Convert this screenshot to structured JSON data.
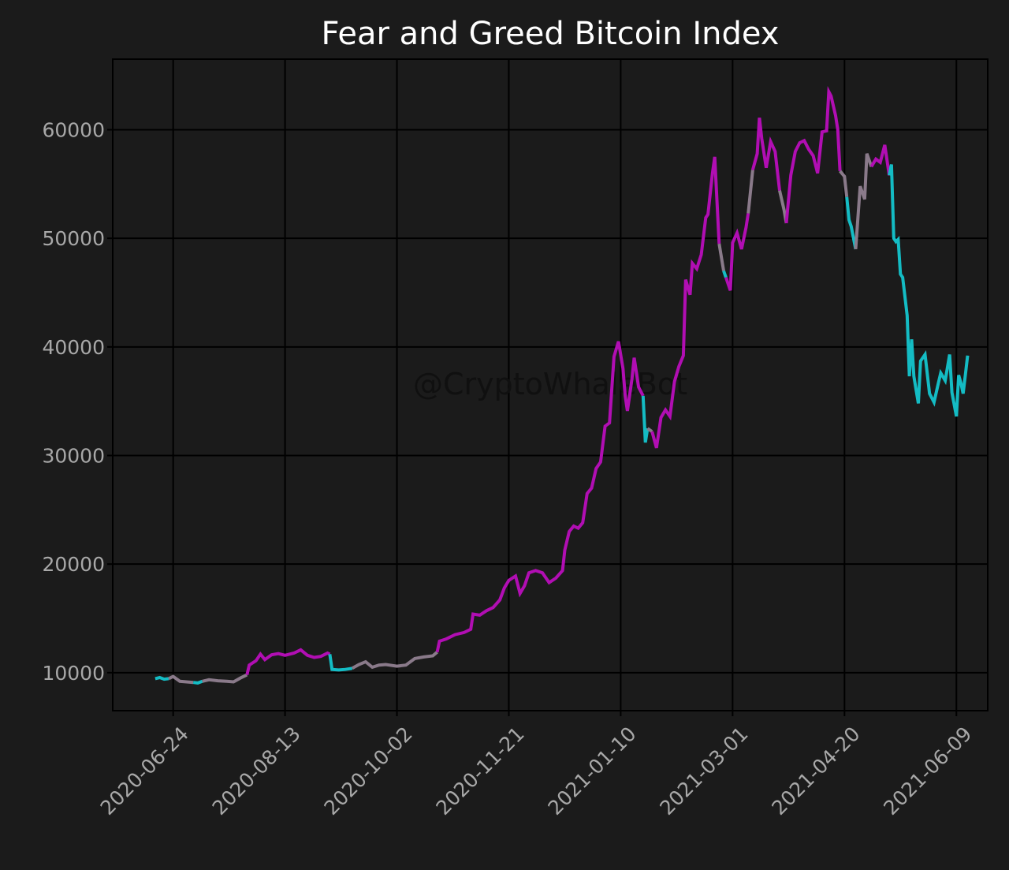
{
  "chart_data": {
    "type": "line",
    "title": "Fear and Greed Bitcoin Index",
    "watermark": "@CryptoWhaleBot",
    "xlabel": "",
    "ylabel": "",
    "x_tick_labels": [
      "2020-06-24",
      "2020-08-13",
      "2020-10-02",
      "2020-11-21",
      "2021-01-10",
      "2021-03-01",
      "2021-04-20",
      "2021-06-09"
    ],
    "y_ticks": [
      10000,
      20000,
      30000,
      40000,
      50000,
      60000
    ],
    "xlim": [
      "2020-05-28",
      "2021-06-23"
    ],
    "ylim": [
      6500,
      66500
    ],
    "grid": true,
    "legend": "none",
    "colors": {
      "background": "#1b1b1b",
      "greed": "#b10eb3",
      "neutral": "#8a7a8a",
      "fear": "#14bcc4"
    },
    "segments": [
      {
        "color": "#14bcc4",
        "points": [
          [
            "2020-06-16",
            9450
          ],
          [
            "2020-06-18",
            9550
          ],
          [
            "2020-06-20",
            9400
          ],
          [
            "2020-06-22",
            9450
          ]
        ]
      },
      {
        "color": "#8a7a8a",
        "points": [
          [
            "2020-06-22",
            9450
          ],
          [
            "2020-06-24",
            9650
          ],
          [
            "2020-06-27",
            9200
          ],
          [
            "2020-06-30",
            9150
          ],
          [
            "2020-07-03",
            9100
          ]
        ]
      },
      {
        "color": "#14bcc4",
        "points": [
          [
            "2020-07-03",
            9100
          ],
          [
            "2020-07-05",
            9050
          ],
          [
            "2020-07-07",
            9200
          ]
        ]
      },
      {
        "color": "#8a7a8a",
        "points": [
          [
            "2020-07-07",
            9200
          ],
          [
            "2020-07-10",
            9350
          ],
          [
            "2020-07-14",
            9250
          ],
          [
            "2020-07-18",
            9200
          ],
          [
            "2020-07-21",
            9150
          ],
          [
            "2020-07-24",
            9500
          ],
          [
            "2020-07-27",
            9800
          ]
        ]
      },
      {
        "color": "#b10eb3",
        "points": [
          [
            "2020-07-27",
            9800
          ],
          [
            "2020-07-28",
            10700
          ],
          [
            "2020-07-31",
            11100
          ],
          [
            "2020-08-02",
            11700
          ],
          [
            "2020-08-04",
            11200
          ],
          [
            "2020-08-07",
            11650
          ],
          [
            "2020-08-10",
            11750
          ],
          [
            "2020-08-13",
            11600
          ],
          [
            "2020-08-17",
            11800
          ],
          [
            "2020-08-20",
            12100
          ],
          [
            "2020-08-23",
            11600
          ],
          [
            "2020-08-26",
            11400
          ],
          [
            "2020-08-29",
            11500
          ],
          [
            "2020-09-01",
            11800
          ],
          [
            "2020-09-02",
            11700
          ]
        ]
      },
      {
        "color": "#14bcc4",
        "points": [
          [
            "2020-09-02",
            11700
          ],
          [
            "2020-09-03",
            10300
          ],
          [
            "2020-09-06",
            10250
          ],
          [
            "2020-09-09",
            10300
          ],
          [
            "2020-09-12",
            10400
          ]
        ]
      },
      {
        "color": "#8a7a8a",
        "points": [
          [
            "2020-09-12",
            10400
          ],
          [
            "2020-09-15",
            10750
          ],
          [
            "2020-09-18",
            11000
          ],
          [
            "2020-09-21",
            10500
          ],
          [
            "2020-09-24",
            10700
          ],
          [
            "2020-09-27",
            10750
          ],
          [
            "2020-10-02",
            10600
          ],
          [
            "2020-10-06",
            10700
          ],
          [
            "2020-10-10",
            11300
          ],
          [
            "2020-10-14",
            11450
          ],
          [
            "2020-10-18",
            11550
          ],
          [
            "2020-10-20",
            11900
          ]
        ]
      },
      {
        "color": "#b10eb3",
        "points": [
          [
            "2020-10-20",
            11900
          ],
          [
            "2020-10-21",
            12900
          ],
          [
            "2020-10-24",
            13100
          ],
          [
            "2020-10-28",
            13500
          ],
          [
            "2020-11-01",
            13700
          ],
          [
            "2020-11-04",
            14000
          ],
          [
            "2020-11-05",
            15400
          ],
          [
            "2020-11-08",
            15300
          ],
          [
            "2020-11-11",
            15700
          ],
          [
            "2020-11-14",
            16000
          ],
          [
            "2020-11-17",
            16700
          ],
          [
            "2020-11-19",
            17800
          ],
          [
            "2020-11-21",
            18500
          ],
          [
            "2020-11-24",
            18900
          ],
          [
            "2020-11-26",
            17300
          ],
          [
            "2020-11-28",
            18000
          ],
          [
            "2020-11-30",
            19200
          ],
          [
            "2020-12-03",
            19400
          ],
          [
            "2020-12-06",
            19200
          ],
          [
            "2020-12-09",
            18300
          ],
          [
            "2020-12-12",
            18700
          ],
          [
            "2020-12-15",
            19400
          ],
          [
            "2020-12-16",
            21300
          ],
          [
            "2020-12-18",
            23000
          ],
          [
            "2020-12-20",
            23500
          ],
          [
            "2020-12-22",
            23300
          ],
          [
            "2020-12-24",
            23800
          ],
          [
            "2020-12-26",
            26500
          ],
          [
            "2020-12-28",
            27000
          ],
          [
            "2020-12-30",
            28800
          ],
          [
            "2021-01-01",
            29400
          ],
          [
            "2021-01-03",
            32700
          ],
          [
            "2021-01-05",
            33000
          ],
          [
            "2021-01-07",
            39100
          ],
          [
            "2021-01-09",
            40500
          ],
          [
            "2021-01-11",
            38000
          ],
          [
            "2021-01-12",
            35500
          ],
          [
            "2021-01-13",
            34100
          ],
          [
            "2021-01-15",
            37000
          ],
          [
            "2021-01-16",
            39000
          ],
          [
            "2021-01-18",
            36300
          ],
          [
            "2021-01-20",
            35500
          ]
        ]
      },
      {
        "color": "#14bcc4",
        "points": [
          [
            "2021-01-20",
            35500
          ],
          [
            "2021-01-21",
            31200
          ],
          [
            "2021-01-22",
            32500
          ]
        ]
      },
      {
        "color": "#8a7a8a",
        "points": [
          [
            "2021-01-22",
            32500
          ],
          [
            "2021-01-24",
            32200
          ]
        ]
      },
      {
        "color": "#b10eb3",
        "points": [
          [
            "2021-01-24",
            32200
          ],
          [
            "2021-01-26",
            30700
          ],
          [
            "2021-01-28",
            33500
          ],
          [
            "2021-01-30",
            34200
          ],
          [
            "2021-02-01",
            33600
          ],
          [
            "2021-02-03",
            36800
          ],
          [
            "2021-02-05",
            38200
          ],
          [
            "2021-02-07",
            39200
          ],
          [
            "2021-02-08",
            46200
          ],
          [
            "2021-02-10",
            44800
          ],
          [
            "2021-02-11",
            47700
          ],
          [
            "2021-02-13",
            47200
          ],
          [
            "2021-02-15",
            48500
          ],
          [
            "2021-02-17",
            51900
          ],
          [
            "2021-02-18",
            52200
          ],
          [
            "2021-02-20",
            56000
          ],
          [
            "2021-02-21",
            57500
          ],
          [
            "2021-02-23",
            49500
          ]
        ]
      },
      {
        "color": "#8a7a8a",
        "points": [
          [
            "2021-02-23",
            49500
          ],
          [
            "2021-02-25",
            47000
          ]
        ]
      },
      {
        "color": "#14bcc4",
        "points": [
          [
            "2021-02-25",
            47000
          ],
          [
            "2021-02-26",
            46400
          ]
        ]
      },
      {
        "color": "#b10eb3",
        "points": [
          [
            "2021-02-26",
            46400
          ],
          [
            "2021-02-28",
            45200
          ],
          [
            "2021-03-01",
            49600
          ],
          [
            "2021-03-03",
            50500
          ],
          [
            "2021-03-05",
            49000
          ],
          [
            "2021-03-07",
            51000
          ],
          [
            "2021-03-08",
            52300
          ]
        ]
      },
      {
        "color": "#8a7a8a",
        "points": [
          [
            "2021-03-08",
            52300
          ],
          [
            "2021-03-10",
            56300
          ]
        ]
      },
      {
        "color": "#b10eb3",
        "points": [
          [
            "2021-03-10",
            56300
          ],
          [
            "2021-03-12",
            57800
          ],
          [
            "2021-03-13",
            61100
          ],
          [
            "2021-03-14",
            59200
          ],
          [
            "2021-03-16",
            56500
          ],
          [
            "2021-03-18",
            58900
          ],
          [
            "2021-03-20",
            58000
          ],
          [
            "2021-03-22",
            54400
          ]
        ]
      },
      {
        "color": "#8a7a8a",
        "points": [
          [
            "2021-03-22",
            54400
          ],
          [
            "2021-03-24",
            52600
          ],
          [
            "2021-03-25",
            51400
          ]
        ]
      },
      {
        "color": "#b10eb3",
        "points": [
          [
            "2021-03-25",
            51400
          ],
          [
            "2021-03-27",
            55800
          ],
          [
            "2021-03-29",
            58000
          ],
          [
            "2021-03-31",
            58800
          ],
          [
            "2021-04-02",
            59000
          ],
          [
            "2021-04-04",
            58200
          ],
          [
            "2021-04-06",
            57600
          ],
          [
            "2021-04-08",
            56000
          ],
          [
            "2021-04-10",
            59800
          ],
          [
            "2021-04-12",
            59900
          ],
          [
            "2021-04-13",
            63500
          ],
          [
            "2021-04-14",
            63100
          ],
          [
            "2021-04-16",
            61300
          ],
          [
            "2021-04-17",
            60000
          ],
          [
            "2021-04-18",
            56200
          ]
        ]
      },
      {
        "color": "#8a7a8a",
        "points": [
          [
            "2021-04-18",
            56200
          ],
          [
            "2021-04-20",
            55700
          ],
          [
            "2021-04-21",
            53800
          ]
        ]
      },
      {
        "color": "#14bcc4",
        "points": [
          [
            "2021-04-21",
            53800
          ],
          [
            "2021-04-22",
            51700
          ],
          [
            "2021-04-23",
            51100
          ],
          [
            "2021-04-25",
            49000
          ]
        ]
      },
      {
        "color": "#8a7a8a",
        "points": [
          [
            "2021-04-25",
            49000
          ],
          [
            "2021-04-27",
            54800
          ],
          [
            "2021-04-29",
            53600
          ],
          [
            "2021-04-30",
            57800
          ],
          [
            "2021-05-02",
            56600
          ]
        ]
      },
      {
        "color": "#b10eb3",
        "points": [
          [
            "2021-05-02",
            56600
          ],
          [
            "2021-05-04",
            57300
          ],
          [
            "2021-05-06",
            57000
          ],
          [
            "2021-05-08",
            58600
          ],
          [
            "2021-05-10",
            55800
          ]
        ]
      },
      {
        "color": "#14bcc4",
        "points": [
          [
            "2021-05-10",
            55800
          ],
          [
            "2021-05-11",
            56800
          ],
          [
            "2021-05-12",
            50000
          ],
          [
            "2021-05-13",
            49700
          ],
          [
            "2021-05-14",
            49900
          ],
          [
            "2021-05-15",
            46700
          ],
          [
            "2021-05-16",
            46400
          ],
          [
            "2021-05-18",
            42900
          ],
          [
            "2021-05-19",
            37300
          ],
          [
            "2021-05-20",
            40700
          ],
          [
            "2021-05-21",
            37300
          ],
          [
            "2021-05-23",
            34800
          ],
          [
            "2021-05-24",
            38700
          ],
          [
            "2021-05-26",
            39300
          ],
          [
            "2021-05-28",
            35700
          ],
          [
            "2021-05-30",
            34900
          ],
          [
            "2021-06-01",
            36700
          ],
          [
            "2021-06-02",
            37600
          ],
          [
            "2021-06-04",
            36900
          ],
          [
            "2021-06-06",
            39300
          ],
          [
            "2021-06-07",
            35800
          ],
          [
            "2021-06-09",
            33600
          ],
          [
            "2021-06-10",
            37400
          ],
          [
            "2021-06-11",
            36700
          ],
          [
            "2021-06-12",
            35700
          ],
          [
            "2021-06-13",
            37400
          ],
          [
            "2021-06-14",
            39200
          ]
        ]
      }
    ]
  }
}
